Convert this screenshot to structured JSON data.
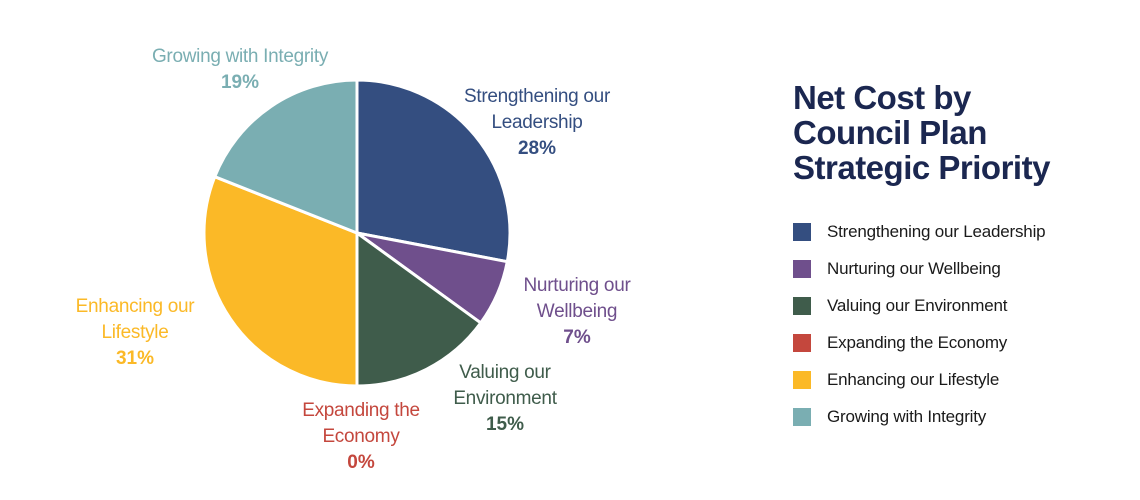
{
  "title_lines": [
    "Net Cost by",
    "Council Plan",
    "Strategic Priority"
  ],
  "chart_data": {
    "type": "pie",
    "title": "Net Cost by Council Plan Strategic Priority",
    "slices": [
      {
        "name": "Strengthening our Leadership",
        "label_lines": [
          "Strengthening our",
          "Leadership"
        ],
        "value": 28,
        "pct_label": "28%",
        "color": "#344e80"
      },
      {
        "name": "Nurturing our Wellbeing",
        "label_lines": [
          "Nurturing our",
          "Wellbeing"
        ],
        "value": 7,
        "pct_label": "7%",
        "color": "#6f4f8c"
      },
      {
        "name": "Valuing our Environment",
        "label_lines": [
          "Valuing our",
          "Environment"
        ],
        "value": 15,
        "pct_label": "15%",
        "color": "#3f5c4b"
      },
      {
        "name": "Expanding the Economy",
        "label_lines": [
          "Expanding the",
          "Economy"
        ],
        "value": 0,
        "pct_label": "0%",
        "color": "#c4473d"
      },
      {
        "name": "Enhancing our Lifestyle",
        "label_lines": [
          "Enhancing our",
          "Lifestyle"
        ],
        "value": 31,
        "pct_label": "31%",
        "color": "#fbb927"
      },
      {
        "name": "Growing with Integrity",
        "label_lines": [
          "Growing with Integrity"
        ],
        "value": 19,
        "pct_label": "19%",
        "color": "#7aaeb2"
      }
    ],
    "legend_position": "right"
  }
}
